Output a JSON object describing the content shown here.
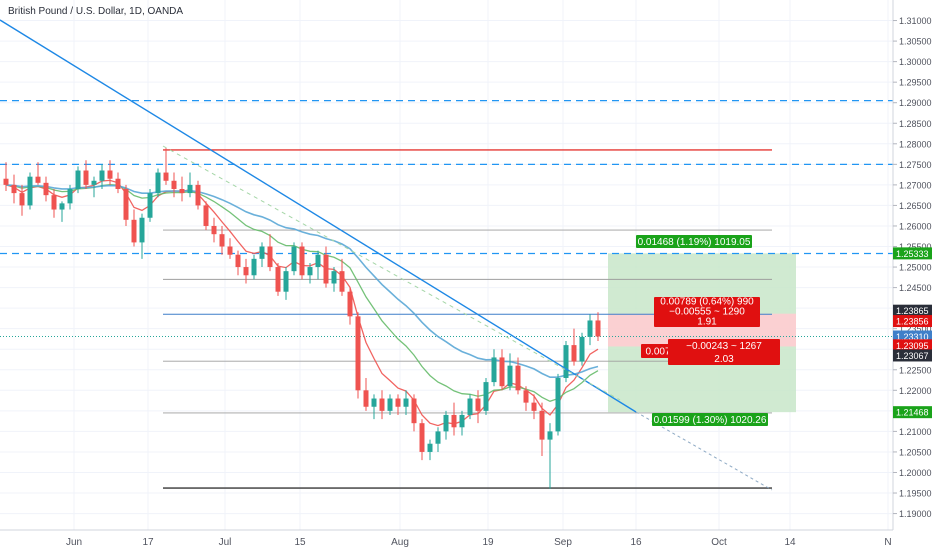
{
  "header": {
    "title": "British Pound / U.S. Dollar, 1D, OANDA"
  },
  "colors": {
    "up": "#26a69a",
    "down": "#ef5350",
    "resistance": "#e53935",
    "dashed_level": "#2196f3",
    "trend_line": "#1e88e5",
    "ma_blue": "#5aa7d6",
    "ma_green": "#66bb6a",
    "ma_red": "#ef5350",
    "fib_line": "#9e9e9e",
    "profit_zone": "#c8e6c9",
    "stop_zone": "#ffcdd2",
    "label_green": "#1aa31a",
    "label_red": "#e01010",
    "label_dark": "#2a2e39",
    "label_blue": "#3f7fc9"
  },
  "chart_data": {
    "type": "candlestick",
    "symbol": "GBPUSD",
    "timeframe": "1D",
    "ylim": [
      1.186,
      1.315
    ],
    "price_ticks": [
      "1.31000",
      "1.30500",
      "1.30000",
      "1.29500",
      "1.29000",
      "1.28500",
      "1.28000",
      "1.27500",
      "1.27000",
      "1.26500",
      "1.26000",
      "1.25500",
      "1.25000",
      "1.24500",
      "1.24000",
      "1.23500",
      "1.23000",
      "1.22500",
      "1.22000",
      "1.21500",
      "1.21000",
      "1.20500",
      "1.20000",
      "1.19500",
      "1.19000"
    ],
    "time_labels": [
      "Jun",
      "17",
      "Jul",
      "15",
      "Aug",
      "19",
      "Sep",
      "16",
      "Oct",
      "14",
      "N"
    ],
    "candles": [
      [
        1.2715,
        1.2755,
        1.2685,
        1.27
      ],
      [
        1.27,
        1.2725,
        1.2655,
        1.268
      ],
      [
        1.268,
        1.27,
        1.2625,
        1.265
      ],
      [
        1.265,
        1.273,
        1.264,
        1.272
      ],
      [
        1.272,
        1.2755,
        1.27,
        1.2705
      ],
      [
        1.2705,
        1.272,
        1.266,
        1.2675
      ],
      [
        1.2675,
        1.269,
        1.262,
        1.264
      ],
      [
        1.264,
        1.266,
        1.261,
        1.2655
      ],
      [
        1.2655,
        1.27,
        1.264,
        1.269
      ],
      [
        1.269,
        1.2745,
        1.268,
        1.2735
      ],
      [
        1.2735,
        1.276,
        1.269,
        1.27
      ],
      [
        1.27,
        1.272,
        1.267,
        1.271
      ],
      [
        1.271,
        1.275,
        1.269,
        1.2735
      ],
      [
        1.2735,
        1.276,
        1.27,
        1.2715
      ],
      [
        1.2715,
        1.273,
        1.268,
        1.269
      ],
      [
        1.269,
        1.27,
        1.26,
        1.2615
      ],
      [
        1.2615,
        1.264,
        1.255,
        1.256
      ],
      [
        1.256,
        1.263,
        1.252,
        1.262
      ],
      [
        1.262,
        1.269,
        1.261,
        1.268
      ],
      [
        1.268,
        1.274,
        1.267,
        1.273
      ],
      [
        1.273,
        1.279,
        1.27,
        1.271
      ],
      [
        1.271,
        1.273,
        1.267,
        1.269
      ],
      [
        1.269,
        1.272,
        1.266,
        1.268
      ],
      [
        1.268,
        1.273,
        1.267,
        1.27
      ],
      [
        1.27,
        1.271,
        1.264,
        1.265
      ],
      [
        1.265,
        1.266,
        1.259,
        1.26
      ],
      [
        1.26,
        1.262,
        1.256,
        1.258
      ],
      [
        1.258,
        1.26,
        1.253,
        1.255
      ],
      [
        1.255,
        1.257,
        1.252,
        1.253
      ],
      [
        1.253,
        1.254,
        1.248,
        1.25
      ],
      [
        1.25,
        1.252,
        1.246,
        1.248
      ],
      [
        1.248,
        1.253,
        1.247,
        1.252
      ],
      [
        1.252,
        1.256,
        1.25,
        1.255
      ],
      [
        1.255,
        1.258,
        1.249,
        1.25
      ],
      [
        1.25,
        1.251,
        1.243,
        1.244
      ],
      [
        1.244,
        1.25,
        1.242,
        1.249
      ],
      [
        1.249,
        1.256,
        1.248,
        1.255
      ],
      [
        1.255,
        1.256,
        1.247,
        1.248
      ],
      [
        1.248,
        1.251,
        1.246,
        1.25
      ],
      [
        1.25,
        1.254,
        1.247,
        1.253
      ],
      [
        1.253,
        1.255,
        1.245,
        1.246
      ],
      [
        1.246,
        1.25,
        1.244,
        1.249
      ],
      [
        1.249,
        1.252,
        1.243,
        1.244
      ],
      [
        1.244,
        1.245,
        1.236,
        1.238
      ],
      [
        1.238,
        1.239,
        1.218,
        1.22
      ],
      [
        1.22,
        1.223,
        1.215,
        1.216
      ],
      [
        1.216,
        1.219,
        1.213,
        1.218
      ],
      [
        1.218,
        1.22,
        1.213,
        1.215
      ],
      [
        1.215,
        1.219,
        1.214,
        1.218
      ],
      [
        1.218,
        1.219,
        1.214,
        1.216
      ],
      [
        1.216,
        1.22,
        1.214,
        1.218
      ],
      [
        1.218,
        1.219,
        1.21,
        1.212
      ],
      [
        1.212,
        1.213,
        1.203,
        1.205
      ],
      [
        1.205,
        1.208,
        1.203,
        1.207
      ],
      [
        1.207,
        1.211,
        1.205,
        1.21
      ],
      [
        1.21,
        1.215,
        1.208,
        1.214
      ],
      [
        1.214,
        1.217,
        1.209,
        1.211
      ],
      [
        1.211,
        1.215,
        1.209,
        1.214
      ],
      [
        1.214,
        1.219,
        1.213,
        1.218
      ],
      [
        1.218,
        1.22,
        1.212,
        1.215
      ],
      [
        1.215,
        1.223,
        1.214,
        1.222
      ],
      [
        1.222,
        1.23,
        1.221,
        1.228
      ],
      [
        1.228,
        1.23,
        1.22,
        1.221
      ],
      [
        1.221,
        1.229,
        1.22,
        1.226
      ],
      [
        1.226,
        1.228,
        1.219,
        1.22
      ],
      [
        1.22,
        1.221,
        1.215,
        1.217
      ],
      [
        1.217,
        1.219,
        1.213,
        1.215
      ],
      [
        1.215,
        1.217,
        1.204,
        1.208
      ],
      [
        1.208,
        1.212,
        1.196,
        1.21
      ],
      [
        1.21,
        1.224,
        1.209,
        1.223
      ],
      [
        1.223,
        1.232,
        1.222,
        1.231
      ],
      [
        1.231,
        1.235,
        1.226,
        1.227
      ],
      [
        1.227,
        1.234,
        1.226,
        1.233
      ],
      [
        1.233,
        1.2385,
        1.231,
        1.237
      ],
      [
        1.237,
        1.239,
        1.232,
        1.2331
      ]
    ],
    "moving_averages": [
      "ma_red",
      "ma_green",
      "ma_blue"
    ],
    "price_tags": {
      "upper_target": "1.25333",
      "lower_target": "1.21468",
      "tag_1": "1.23865",
      "tag_2": "1.23856",
      "current": "1.23310",
      "tag_3": "1.23095",
      "tag_4": "1.23067"
    },
    "annotations": {
      "profit_long": "0.01468 (1.19%) 1019.05",
      "profit_short": "0.01599 (1.30%) 1020.26",
      "stop_a": "0.00789 (0.64%) 990",
      "stop_b": "−0.00555 ~ 1290",
      "ratio_a": "1.91",
      "stop_c": "0.007",
      "stop_d": "−0.00243 ~ 1267",
      "ratio_b": "2.03"
    }
  }
}
